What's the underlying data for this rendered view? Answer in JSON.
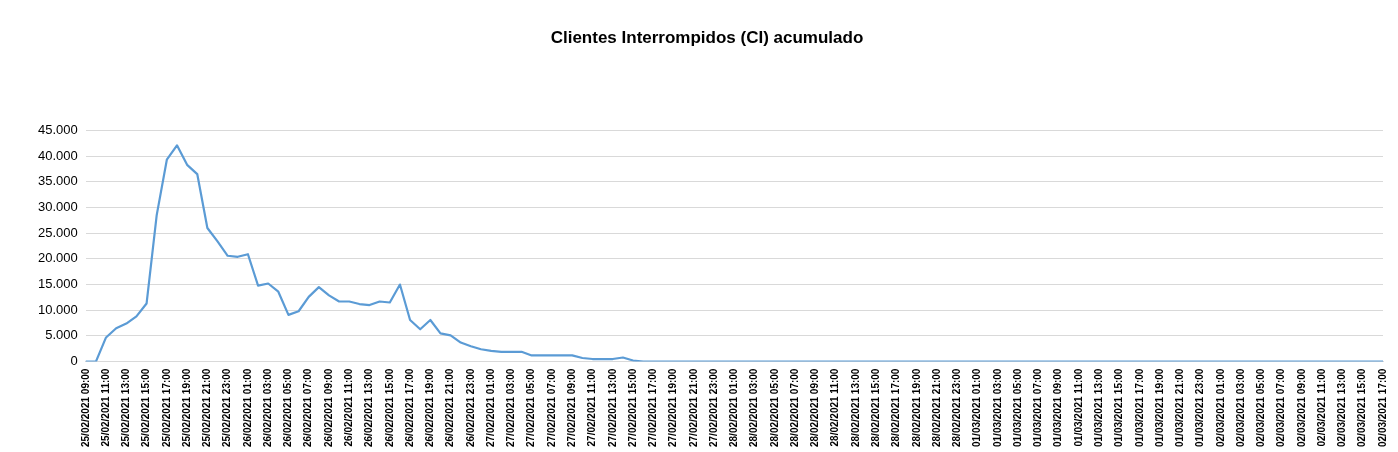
{
  "chart_data": {
    "type": "line",
    "title": "Clientes Interrompidos (CI) acumulado",
    "categories": [
      "25/02/2021 09:00",
      null,
      "25/02/2021 11:00",
      null,
      "25/02/2021 13:00",
      null,
      "25/02/2021 15:00",
      null,
      "25/02/2021 17:00",
      null,
      "25/02/2021 19:00",
      null,
      "25/02/2021 21:00",
      null,
      "25/02/2021 23:00",
      null,
      "26/02/2021 01:00",
      null,
      "26/02/2021 03:00",
      null,
      "26/02/2021 05:00",
      null,
      "26/02/2021 07:00",
      null,
      "26/02/2021 09:00",
      null,
      "26/02/2021 11:00",
      null,
      "26/02/2021 13:00",
      null,
      "26/02/2021 15:00",
      null,
      "26/02/2021 17:00",
      null,
      "26/02/2021 19:00",
      null,
      "26/02/2021 21:00",
      null,
      "26/02/2021 23:00",
      null,
      "27/02/2021 01:00",
      null,
      "27/02/2021 03:00",
      null,
      "27/02/2021 05:00",
      null,
      "27/02/2021 07:00",
      null,
      "27/02/2021 09:00",
      null,
      "27/02/2021 11:00",
      null,
      "27/02/2021 13:00",
      null,
      "27/02/2021 15:00",
      null,
      "27/02/2021 17:00",
      null,
      "27/02/2021 19:00",
      null,
      "27/02/2021 21:00",
      null,
      "27/02/2021 23:00",
      null,
      "28/02/2021 01:00",
      null,
      "28/02/2021 03:00",
      null,
      "28/02/2021 05:00",
      null,
      "28/02/2021 07:00",
      null,
      "28/02/2021 09:00",
      null,
      "28/02/2021 11:00",
      null,
      "28/02/2021 13:00",
      null,
      "28/02/2021 15:00",
      null,
      "28/02/2021 17:00",
      null,
      "28/02/2021 19:00",
      null,
      "28/02/2021 21:00",
      null,
      "28/02/2021 23:00",
      null,
      "01/03/2021 01:00",
      null,
      "01/03/2021 03:00",
      null,
      "01/03/2021 05:00",
      null,
      "01/03/2021 07:00",
      null,
      "01/03/2021 09:00",
      null,
      "01/03/2021 11:00",
      null,
      "01/03/2021 13:00",
      null,
      "01/03/2021 15:00",
      null,
      "01/03/2021 17:00",
      null,
      "01/03/2021 19:00",
      null,
      "01/03/2021 21:00",
      null,
      "01/03/2021 23:00",
      null,
      "02/03/2021 01:00",
      null,
      "02/03/2021 03:00",
      null,
      "02/03/2021 05:00",
      null,
      "02/03/2021 07:00",
      null,
      "02/03/2021 09:00",
      null,
      "02/03/2021 11:00",
      null,
      "02/03/2021 13:00",
      null,
      "02/03/2021 15:00",
      null,
      "02/03/2021 17:00"
    ],
    "series": [
      {
        "color": "#5b9bd5",
        "values": [
          0,
          0,
          4700,
          6500,
          7400,
          8800,
          11300,
          28500,
          39300,
          42100,
          38300,
          36500,
          26000,
          23400,
          20600,
          20400,
          20900,
          14800,
          15200,
          13600,
          9100,
          9800,
          12600,
          14500,
          12900,
          11700,
          11700,
          11200,
          11000,
          11700,
          11500,
          15000,
          8100,
          6300,
          8100,
          5500,
          5100,
          3700,
          3000,
          2400,
          2100,
          1900,
          1900,
          1900,
          1200,
          1200,
          1200,
          1200,
          1200,
          700,
          500,
          500,
          500,
          800,
          200,
          0,
          0,
          0,
          0,
          0,
          0,
          0,
          0,
          0,
          0,
          0,
          0,
          0,
          0,
          0,
          0,
          0,
          0,
          0,
          0,
          0,
          0,
          0,
          0,
          0,
          0,
          0,
          0,
          0,
          0,
          0,
          0,
          0,
          0,
          0,
          0,
          0,
          0,
          0,
          0,
          0,
          0,
          0,
          0,
          0,
          0,
          0,
          0,
          0,
          0,
          0,
          0,
          0,
          0,
          0,
          0,
          0,
          0,
          0,
          0,
          0,
          0,
          0,
          0,
          0,
          0,
          0,
          0,
          0,
          0,
          0,
          0,
          0,
          0
        ]
      }
    ],
    "ylim": [
      0,
      45000
    ],
    "yticks": [
      0,
      {
        "value": 5000,
        "label": "5.000"
      },
      {
        "value": 10000,
        "label": "10.000"
      },
      {
        "value": 15000,
        "label": "15.000"
      },
      {
        "value": 20000,
        "label": "20.000"
      },
      {
        "value": 25000,
        "label": "25.000"
      },
      {
        "value": 30000,
        "label": "30.000"
      },
      {
        "value": 35000,
        "label": "35.000"
      },
      {
        "value": 40000,
        "label": "40.000"
      },
      {
        "value": 45000,
        "label": "45.000"
      }
    ],
    "grid": "y",
    "legend": false,
    "marker": "none",
    "line_style": "solid"
  }
}
